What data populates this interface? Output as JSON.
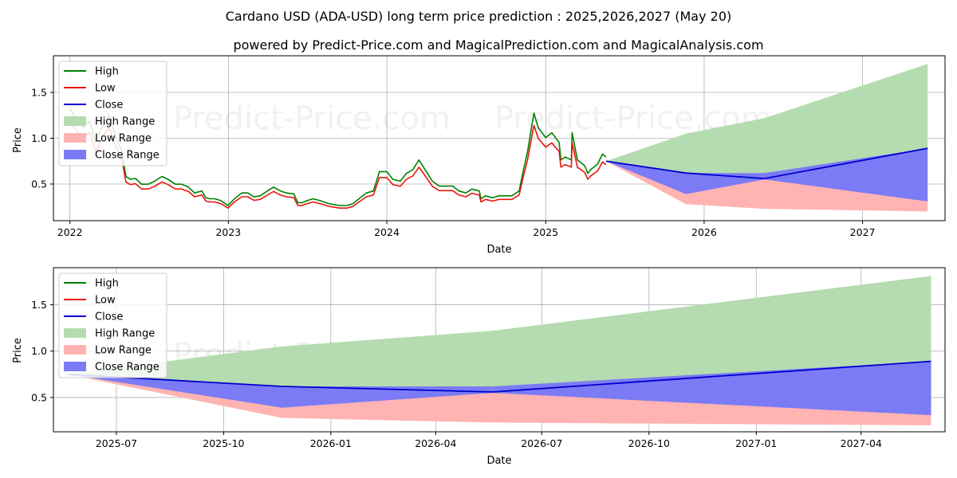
{
  "title": "Cardano USD (ADA-USD) long term price prediction : 2025,2026,2027 (May 20)",
  "subtitle": "powered by Predict-Price.com and MagicalPrediction.com and MagicalAnalysis.com",
  "watermark": "Predict-Price.com",
  "colors": {
    "high": "#008000",
    "low": "#e8170f",
    "close": "#0000cc",
    "high_range": "#b5dcb0",
    "low_range": "#ffb3b3",
    "close_range": "#7b7bf6",
    "grid": "#b0b0b0"
  },
  "legend": {
    "high": "High",
    "low": "Low",
    "close": "Close",
    "high_range": "High Range",
    "low_range": "Low Range",
    "close_range": "Close Range"
  },
  "chart_data": [
    {
      "type": "line",
      "panel": "top",
      "xlabel": "Date",
      "ylabel": "Price",
      "xlim": [
        "2021-11-24",
        "2027-07-10"
      ],
      "ylim": [
        0.1,
        1.9
      ],
      "x_ticks": [
        "2022",
        "2023",
        "2024",
        "2025",
        "2026",
        "2027"
      ],
      "y_ticks": [
        "0.5",
        "1.0",
        "1.5"
      ],
      "grid": true,
      "legend_position": "top-left",
      "history_close": {
        "dates": [
          "2022-01-01",
          "2022-01-15",
          "2022-02-01",
          "2022-02-15",
          "2022-03-01",
          "2022-03-15",
          "2022-04-01",
          "2022-04-15",
          "2022-05-01",
          "2022-05-10",
          "2022-05-20",
          "2022-06-01",
          "2022-06-15",
          "2022-07-01",
          "2022-07-15",
          "2022-08-01",
          "2022-08-15",
          "2022-09-01",
          "2022-09-15",
          "2022-10-01",
          "2022-10-15",
          "2022-11-01",
          "2022-11-10",
          "2022-11-20",
          "2022-12-01",
          "2022-12-15",
          "2022-12-31",
          "2023-01-15",
          "2023-02-01",
          "2023-02-15",
          "2023-03-01",
          "2023-03-15",
          "2023-04-01",
          "2023-04-15",
          "2023-05-01",
          "2023-05-15",
          "2023-06-01",
          "2023-06-10",
          "2023-06-20",
          "2023-07-01",
          "2023-07-15",
          "2023-08-01",
          "2023-08-20",
          "2023-09-01",
          "2023-09-15",
          "2023-10-01",
          "2023-10-15",
          "2023-11-01",
          "2023-11-15",
          "2023-12-01",
          "2023-12-15",
          "2024-01-01",
          "2024-01-15",
          "2024-02-01",
          "2024-02-15",
          "2024-03-01",
          "2024-03-15",
          "2024-04-01",
          "2024-04-15",
          "2024-05-01",
          "2024-05-15",
          "2024-06-01",
          "2024-06-15",
          "2024-07-01",
          "2024-07-15",
          "2024-08-01",
          "2024-08-05",
          "2024-08-15",
          "2024-09-01",
          "2024-09-15",
          "2024-10-01",
          "2024-10-15",
          "2024-11-01",
          "2024-11-10",
          "2024-11-20",
          "2024-12-01",
          "2024-12-05",
          "2024-12-15",
          "2025-01-01",
          "2025-01-15",
          "2025-02-01",
          "2025-02-05",
          "2025-02-15",
          "2025-03-01",
          "2025-03-03",
          "2025-03-15",
          "2025-04-01",
          "2025-04-08",
          "2025-04-15",
          "2025-05-01",
          "2025-05-12",
          "2025-05-20"
        ],
        "values": [
          1.25,
          1.15,
          1.05,
          1.12,
          0.9,
          1.05,
          1.18,
          0.98,
          0.8,
          0.55,
          0.52,
          0.53,
          0.47,
          0.47,
          0.5,
          0.55,
          0.52,
          0.47,
          0.47,
          0.44,
          0.38,
          0.4,
          0.33,
          0.32,
          0.32,
          0.3,
          0.25,
          0.32,
          0.38,
          0.38,
          0.34,
          0.35,
          0.4,
          0.44,
          0.4,
          0.38,
          0.37,
          0.28,
          0.28,
          0.3,
          0.32,
          0.3,
          0.27,
          0.26,
          0.25,
          0.25,
          0.27,
          0.33,
          0.38,
          0.4,
          0.6,
          0.6,
          0.52,
          0.5,
          0.58,
          0.62,
          0.72,
          0.6,
          0.5,
          0.45,
          0.45,
          0.45,
          0.4,
          0.38,
          0.42,
          0.4,
          0.32,
          0.35,
          0.33,
          0.35,
          0.35,
          0.35,
          0.4,
          0.6,
          0.8,
          1.1,
          1.2,
          1.05,
          0.95,
          1.0,
          0.9,
          0.72,
          0.75,
          0.72,
          1.0,
          0.72,
          0.66,
          0.58,
          0.62,
          0.68,
          0.78,
          0.75
        ]
      },
      "forecast": {
        "dates": [
          "2025-05-20",
          "2025-11-20",
          "2026-05-20",
          "2027-05-31"
        ],
        "close": [
          0.75,
          0.62,
          0.56,
          0.89
        ],
        "high_upper": [
          0.75,
          1.05,
          1.22,
          1.81
        ],
        "close_upper": [
          0.75,
          0.62,
          0.62,
          0.89
        ],
        "close_lower": [
          0.75,
          0.39,
          0.55,
          0.31
        ],
        "low_lower": [
          0.75,
          0.28,
          0.23,
          0.2
        ]
      }
    },
    {
      "type": "area",
      "panel": "bottom",
      "xlabel": "Date",
      "ylabel": "Price",
      "xlim": [
        "2025-05-08",
        "2027-06-12"
      ],
      "ylim": [
        0.13,
        1.9
      ],
      "x_ticks": [
        "2025-07",
        "2025-10",
        "2026-01",
        "2026-04",
        "2026-07",
        "2026-10",
        "2027-01",
        "2027-04"
      ],
      "y_ticks": [
        "0.5",
        "1.0",
        "1.5"
      ],
      "grid": true,
      "legend_position": "top-left",
      "forecast": {
        "dates": [
          "2025-05-20",
          "2025-11-20",
          "2026-05-20",
          "2027-05-31"
        ],
        "close": [
          0.75,
          0.62,
          0.56,
          0.89
        ],
        "high_upper": [
          0.75,
          1.05,
          1.22,
          1.81
        ],
        "close_upper": [
          0.75,
          0.62,
          0.62,
          0.89
        ],
        "close_lower": [
          0.75,
          0.39,
          0.55,
          0.31
        ],
        "low_lower": [
          0.75,
          0.28,
          0.23,
          0.2
        ]
      }
    }
  ]
}
